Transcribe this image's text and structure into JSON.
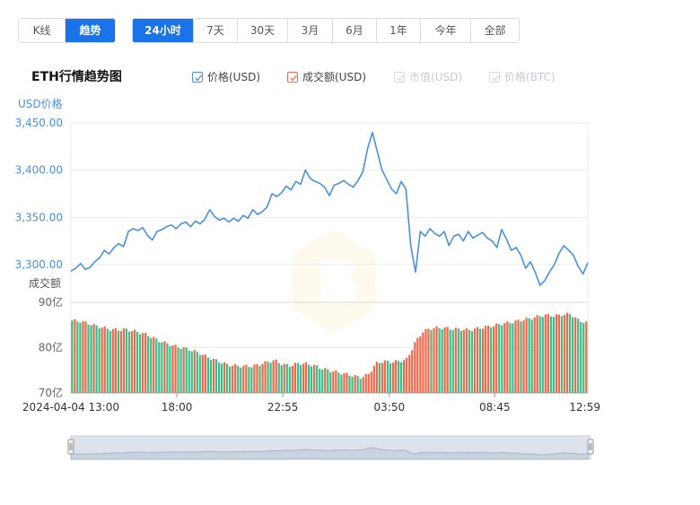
{
  "view_tabs": [
    {
      "label": "K线",
      "active": false
    },
    {
      "label": "趋势",
      "active": true
    }
  ],
  "range_tabs": [
    {
      "label": "24小时",
      "active": true
    },
    {
      "label": "7天",
      "active": false
    },
    {
      "label": "30天",
      "active": false
    },
    {
      "label": "3月",
      "active": false
    },
    {
      "label": "6月",
      "active": false
    },
    {
      "label": "1年",
      "active": false
    },
    {
      "label": "今年",
      "active": false
    },
    {
      "label": "全部",
      "active": false
    }
  ],
  "legend": [
    {
      "label": "价格(USD)",
      "checked": true,
      "enabled": true,
      "color": "#4a90e2"
    },
    {
      "label": "成交额(USD)",
      "checked": true,
      "enabled": true,
      "color": "#f0694a"
    },
    {
      "label": "市值(USD)",
      "checked": true,
      "enabled": false,
      "color": "#d5d8dd"
    },
    {
      "label": "价格(BTC)",
      "checked": true,
      "enabled": false,
      "color": "#d5d8dd"
    }
  ],
  "colors": {
    "accent": "#1a73e8",
    "price_line": "#4a90e2",
    "volume_up": "#f0694a",
    "volume_down": "#3dbd8a",
    "grid": "#ebebeb",
    "navigator_fill": "#dde3ec"
  },
  "chart_data": [
    {
      "type": "line",
      "title": "ETH行情趋势图",
      "ylabel": "USD价格",
      "ylim": [
        3260,
        3450
      ],
      "yticks": [
        3450,
        3400,
        3350,
        3300
      ],
      "ytick_labels": [
        "3,450.00",
        "3,400.00",
        "3,350.00",
        "3,300.00"
      ],
      "x_tick_labels": [
        "2024-04-04 13:00",
        "18:00",
        "22:55",
        "03:50",
        "08:45",
        "12:59"
      ],
      "grid": true,
      "series": [
        {
          "name": "价格(USD)",
          "values": [
            3293,
            3296,
            3301,
            3295,
            3297,
            3303,
            3307,
            3315,
            3311,
            3318,
            3322,
            3319,
            3335,
            3338,
            3336,
            3339,
            3331,
            3326,
            3335,
            3337,
            3340,
            3342,
            3338,
            3343,
            3345,
            3340,
            3346,
            3343,
            3348,
            3358,
            3351,
            3347,
            3349,
            3345,
            3349,
            3346,
            3352,
            3349,
            3358,
            3353,
            3356,
            3361,
            3375,
            3372,
            3376,
            3383,
            3379,
            3388,
            3385,
            3400,
            3391,
            3388,
            3386,
            3382,
            3373,
            3384,
            3386,
            3389,
            3385,
            3382,
            3389,
            3398,
            3423,
            3440,
            3420,
            3400,
            3390,
            3380,
            3375,
            3388,
            3380,
            3320,
            3292,
            3335,
            3330,
            3338,
            3333,
            3330,
            3335,
            3320,
            3330,
            3332,
            3325,
            3335,
            3328,
            3331,
            3334,
            3328,
            3325,
            3318,
            3337,
            3327,
            3315,
            3318,
            3310,
            3296,
            3303,
            3292,
            3278,
            3283,
            3292,
            3300,
            3312,
            3320,
            3315,
            3310,
            3298,
            3290,
            3302
          ]
        },
        {
          "name": "成交额(USD)",
          "ylabel": "成交额",
          "ylim": [
            70,
            90
          ],
          "ytick_labels": [
            "90亿",
            "80亿",
            "70亿"
          ],
          "values": [
            86,
            85.8,
            85.4,
            84.8,
            84.4,
            84.0,
            83.9,
            84.0,
            83.6,
            83.2,
            82.5,
            81.6,
            81.0,
            80.4,
            80.0,
            79.6,
            79.0,
            78.2,
            77.5,
            76.8,
            76.2,
            76.0,
            75.9,
            75.9,
            76.2,
            76.8,
            77.2,
            76.3,
            76.0,
            76.5,
            76.4,
            76.1,
            75.4,
            75.0,
            74.6,
            74.2,
            73.8,
            73.4,
            74.0,
            76.5,
            77.0,
            76.8,
            77.0,
            77.4,
            81.0,
            83.5,
            84.2,
            84.4,
            84.3,
            84.1,
            84.0,
            83.9,
            84.2,
            84.5,
            84.8,
            85.2,
            85.5,
            85.8,
            86.2,
            86.5,
            87.0,
            87.2,
            87.0,
            87.3,
            87.4,
            86.0,
            85.5
          ]
        }
      ]
    }
  ]
}
